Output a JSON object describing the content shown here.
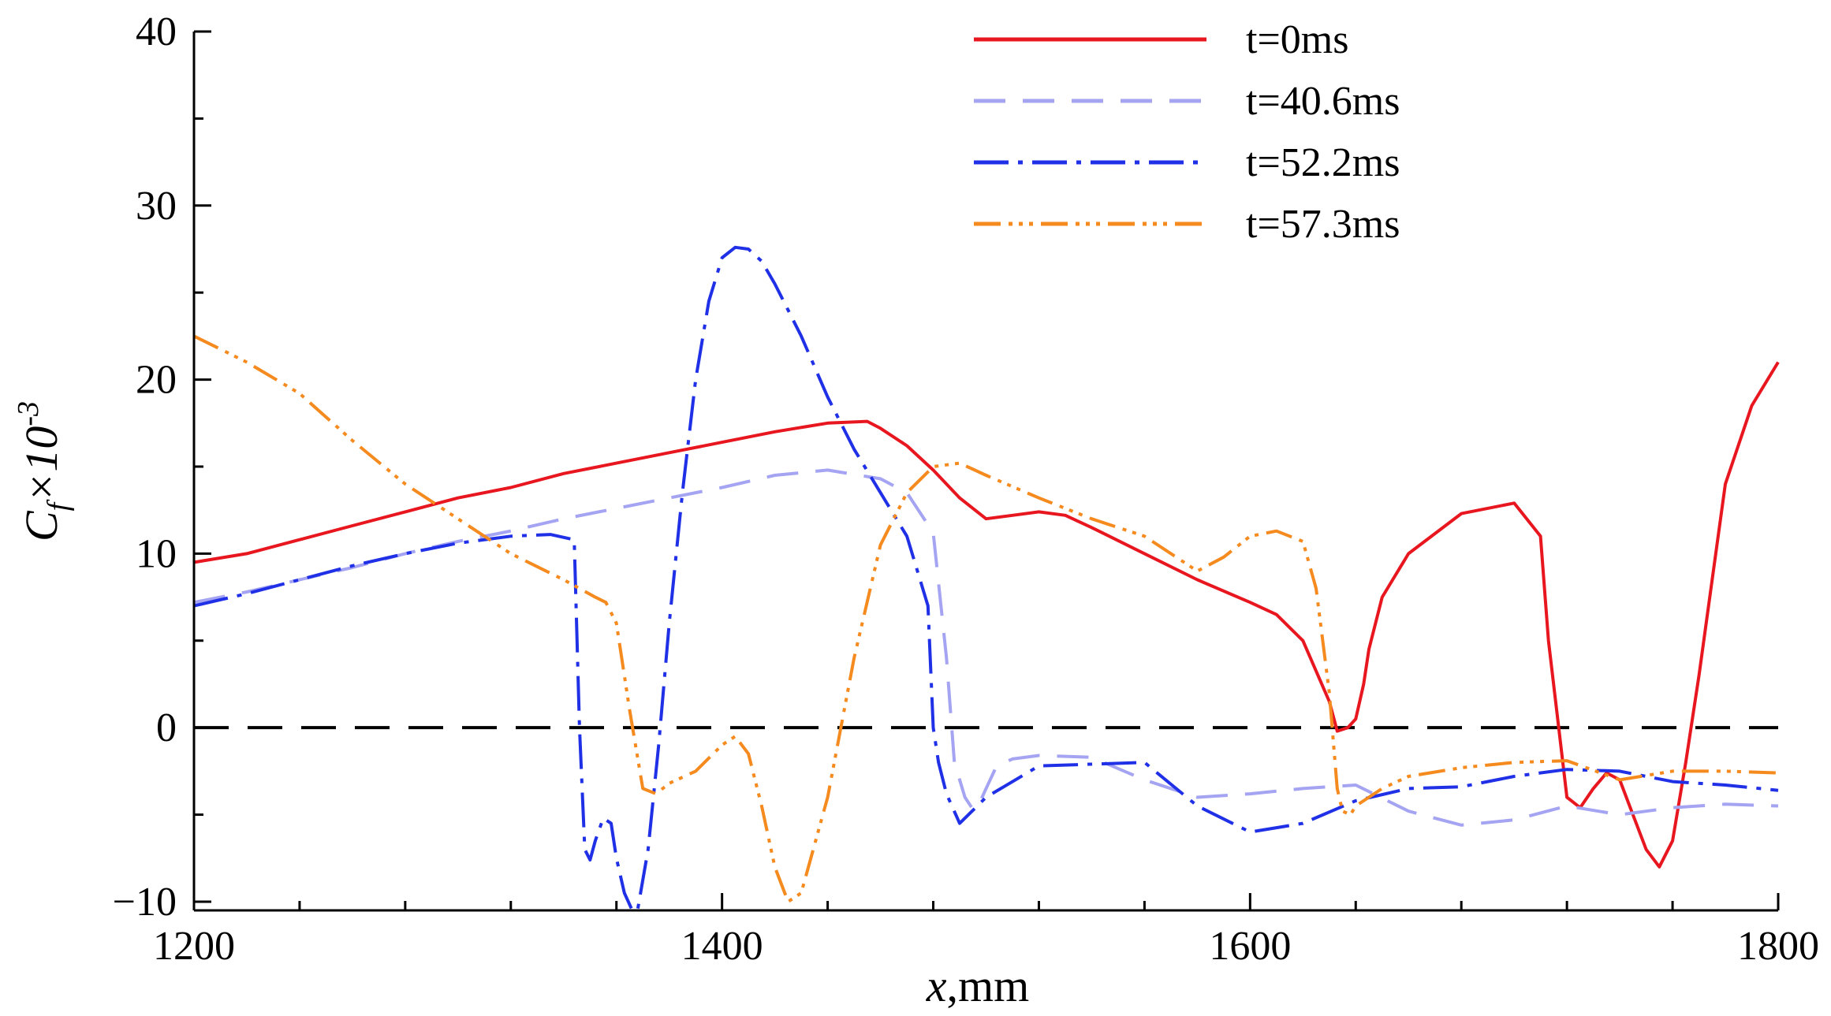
{
  "chart_data": {
    "type": "line",
    "title": "",
    "xlabel_italic": "x",
    "xlabel_unit": ",mm",
    "ylabel_main": "C",
    "ylabel_sub": "f",
    "ylabel_mult": "×10",
    "ylabel_exp": "-3",
    "xlim": [
      1200,
      1800
    ],
    "ylim": [
      -10.5,
      40
    ],
    "xticks": [
      1200,
      1400,
      1600,
      1800
    ],
    "xtick_labels": [
      "1200",
      "1400",
      "1600",
      "1800"
    ],
    "yticks": [
      -10,
      0,
      10,
      20,
      30,
      40
    ],
    "ytick_labels": [
      "−10",
      "0",
      "10",
      "20",
      "30",
      "40"
    ],
    "reference_line": {
      "y": 0,
      "style": "dashed",
      "color": "#000000"
    },
    "legend_position": "top-right",
    "series": [
      {
        "name": "t=0ms",
        "color": "#e8161f",
        "dash": "solid",
        "x": [
          1200,
          1220,
          1240,
          1260,
          1280,
          1300,
          1320,
          1340,
          1360,
          1380,
          1400,
          1420,
          1440,
          1455,
          1460,
          1470,
          1480,
          1490,
          1500,
          1510,
          1520,
          1530,
          1540,
          1560,
          1580,
          1600,
          1610,
          1620,
          1630,
          1633,
          1637,
          1640,
          1643,
          1645,
          1650,
          1660,
          1680,
          1700,
          1710,
          1713,
          1720,
          1725,
          1730,
          1735,
          1740,
          1745,
          1750,
          1755,
          1760,
          1765,
          1770,
          1775,
          1780,
          1790,
          1800
        ],
        "y": [
          9.5,
          10.0,
          10.8,
          11.6,
          12.4,
          13.2,
          13.8,
          14.6,
          15.2,
          15.8,
          16.4,
          17.0,
          17.5,
          17.6,
          17.2,
          16.2,
          14.8,
          13.2,
          12.0,
          12.2,
          12.4,
          12.2,
          11.5,
          10.0,
          8.5,
          7.2,
          6.5,
          5.0,
          1.5,
          -0.2,
          0.0,
          0.5,
          2.5,
          4.5,
          7.5,
          10.0,
          12.3,
          12.9,
          11.0,
          5.0,
          -4.0,
          -4.6,
          -3.5,
          -2.6,
          -3.0,
          -5.0,
          -7.0,
          -8.0,
          -6.5,
          -2.0,
          3.0,
          8.5,
          14.0,
          18.5,
          21.0
        ]
      },
      {
        "name": "t=40.6ms",
        "color": "#a4a4f2",
        "dash": "40,22",
        "x": [
          1200,
          1220,
          1240,
          1260,
          1280,
          1300,
          1320,
          1340,
          1360,
          1380,
          1400,
          1420,
          1440,
          1460,
          1470,
          1480,
          1485,
          1488,
          1492,
          1495,
          1497,
          1500,
          1504,
          1510,
          1520,
          1540,
          1560,
          1580,
          1600,
          1620,
          1640,
          1660,
          1680,
          1700,
          1720,
          1740,
          1760,
          1780,
          1800
        ],
        "y": [
          7.2,
          7.8,
          8.5,
          9.2,
          10.0,
          10.7,
          11.3,
          12.0,
          12.6,
          13.2,
          13.8,
          14.5,
          14.8,
          14.3,
          13.5,
          11.2,
          4.0,
          -2.0,
          -4.0,
          -4.7,
          -4.5,
          -3.5,
          -2.2,
          -1.8,
          -1.6,
          -1.7,
          -3.0,
          -4.0,
          -3.8,
          -3.5,
          -3.3,
          -4.8,
          -5.6,
          -5.3,
          -4.5,
          -5.0,
          -4.6,
          -4.4,
          -4.5
        ]
      },
      {
        "name": "t=52.2ms",
        "color": "#1f30e6",
        "dash": "44,12,6,12",
        "x": [
          1200,
          1220,
          1240,
          1260,
          1280,
          1300,
          1320,
          1335,
          1344,
          1346,
          1348,
          1350,
          1352,
          1355,
          1358,
          1360,
          1363,
          1366,
          1368,
          1372,
          1376,
          1380,
          1385,
          1390,
          1395,
          1400,
          1405,
          1410,
          1415,
          1420,
          1425,
          1430,
          1440,
          1450,
          1460,
          1470,
          1478,
          1480,
          1482,
          1485,
          1490,
          1500,
          1520,
          1540,
          1560,
          1580,
          1600,
          1620,
          1640,
          1660,
          1680,
          1700,
          1720,
          1740,
          1760,
          1780,
          1800
        ],
        "y": [
          7.0,
          7.7,
          8.5,
          9.3,
          10.0,
          10.6,
          11.0,
          11.1,
          10.8,
          0.0,
          -7.0,
          -7.6,
          -6.5,
          -5.2,
          -5.5,
          -7.5,
          -9.5,
          -10.5,
          -10.5,
          -7.0,
          -1.0,
          6.0,
          13.5,
          20.0,
          24.5,
          27.0,
          27.6,
          27.5,
          26.8,
          25.5,
          24.0,
          22.5,
          19.0,
          16.0,
          13.5,
          11.0,
          7.0,
          0.0,
          -2.0,
          -3.8,
          -5.5,
          -4.0,
          -2.2,
          -2.1,
          -2.0,
          -4.5,
          -6.0,
          -5.5,
          -4.2,
          -3.5,
          -3.4,
          -2.8,
          -2.4,
          -2.5,
          -3.1,
          -3.3,
          -3.6
        ]
      },
      {
        "name": "t=57.3ms",
        "color": "#f58a1f",
        "dash": "34,10,5,8,5,8,5,10",
        "x": [
          1200,
          1220,
          1240,
          1260,
          1280,
          1300,
          1320,
          1340,
          1352,
          1356,
          1360,
          1365,
          1370,
          1375,
          1380,
          1390,
          1400,
          1405,
          1410,
          1415,
          1420,
          1425,
          1430,
          1440,
          1450,
          1460,
          1470,
          1480,
          1490,
          1500,
          1520,
          1540,
          1560,
          1580,
          1590,
          1600,
          1610,
          1620,
          1625,
          1630,
          1633,
          1635,
          1638,
          1640,
          1645,
          1650,
          1660,
          1680,
          1700,
          1720,
          1740,
          1760,
          1780,
          1800
        ],
        "y": [
          22.5,
          21.0,
          19.2,
          16.5,
          14.0,
          12.0,
          10.0,
          8.5,
          7.5,
          7.2,
          6.0,
          1.0,
          -3.5,
          -3.8,
          -3.2,
          -2.5,
          -1.0,
          -0.5,
          -1.5,
          -4.5,
          -8.0,
          -10.0,
          -9.5,
          -4.0,
          4.0,
          10.5,
          13.5,
          15.0,
          15.2,
          14.5,
          13.2,
          12.0,
          11.0,
          9.0,
          9.8,
          11.0,
          11.3,
          10.7,
          8.0,
          2.0,
          -3.5,
          -4.8,
          -5.0,
          -4.5,
          -4.0,
          -3.5,
          -2.8,
          -2.3,
          -2.0,
          -1.9,
          -3.0,
          -2.5,
          -2.5,
          -2.6
        ]
      }
    ]
  }
}
